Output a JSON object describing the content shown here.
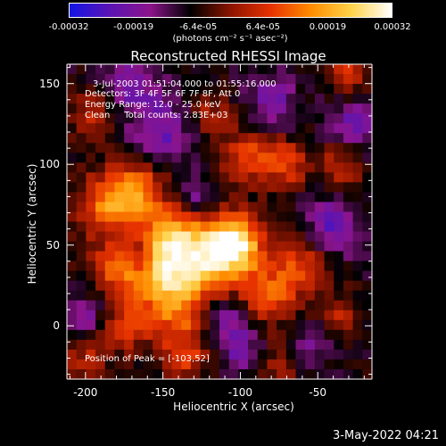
{
  "colorbar": {
    "ticks": [
      "-0.00032",
      "-0.00019",
      "-6.4e-05",
      "6.4e-05",
      "0.00019",
      "0.00032"
    ],
    "units": "(photons cm⁻² s⁻¹ asec⁻²)",
    "colors": [
      "#1414e6",
      "#5a14b4",
      "#8c148c",
      "#000000",
      "#8c1400",
      "#e63200",
      "#ff8c00",
      "#ffd24a",
      "#ffffff"
    ]
  },
  "timestamp": "3-May-2022 04:21",
  "chart_data": {
    "type": "heatmap",
    "title": "Reconstructed RHESSI Image",
    "xlabel": "Heliocentric X (arcsec)",
    "ylabel": "Heliocentric Y (arcsec)",
    "xlim": [
      -212,
      -15
    ],
    "ylim": [
      -33,
      162
    ],
    "xticks": [
      "-200",
      "-150",
      "-100",
      "-50"
    ],
    "yticks": [
      "0",
      "50",
      "100",
      "150"
    ],
    "annotations": [
      "3-Jul-2003 01:51:04.000 to 01:55:16.000",
      "Detectors: 3F 4F 5F 6F 7F 8F, Att 0",
      "Energy Range: 12.0 - 25.0 keV",
      "Clean     Total counts: 2.83E+03"
    ],
    "peak_label": "Position of Peak = [-103,52]",
    "peak": [
      -103,
      52
    ],
    "blobs": [
      {
        "x": -103,
        "y": 52,
        "v": 1.0,
        "s": 12
      },
      {
        "x": -120,
        "y": 40,
        "v": 0.85,
        "s": 16
      },
      {
        "x": -145,
        "y": 55,
        "v": 0.8,
        "s": 14
      },
      {
        "x": -150,
        "y": 30,
        "v": 0.8,
        "s": 14
      },
      {
        "x": -185,
        "y": 75,
        "v": 0.7,
        "s": 14
      },
      {
        "x": -165,
        "y": 85,
        "v": 0.6,
        "s": 12
      },
      {
        "x": -180,
        "y": 35,
        "v": 0.55,
        "s": 12
      },
      {
        "x": -140,
        "y": 5,
        "v": 0.5,
        "s": 14
      },
      {
        "x": -175,
        "y": 0,
        "v": 0.45,
        "s": 12
      },
      {
        "x": -95,
        "y": 105,
        "v": 0.5,
        "s": 12
      },
      {
        "x": -70,
        "y": 100,
        "v": 0.5,
        "s": 10
      },
      {
        "x": -80,
        "y": 20,
        "v": 0.55,
        "s": 14
      },
      {
        "x": -60,
        "y": 40,
        "v": 0.45,
        "s": 12
      },
      {
        "x": -35,
        "y": 100,
        "v": 0.4,
        "s": 10
      },
      {
        "x": -30,
        "y": 155,
        "v": 0.45,
        "s": 9
      },
      {
        "x": -195,
        "y": 130,
        "v": 0.4,
        "s": 10
      },
      {
        "x": -120,
        "y": 130,
        "v": 0.35,
        "s": 10
      },
      {
        "x": -35,
        "y": 5,
        "v": 0.35,
        "s": 10
      },
      {
        "x": -200,
        "y": -20,
        "v": 0.35,
        "s": 10
      },
      {
        "x": -135,
        "y": -20,
        "v": 0.4,
        "s": 10
      },
      {
        "x": -75,
        "y": -25,
        "v": 0.3,
        "s": 10
      },
      {
        "x": -130,
        "y": 80,
        "v": -0.35,
        "s": 9
      },
      {
        "x": -110,
        "y": 5,
        "v": -0.4,
        "s": 10
      },
      {
        "x": -40,
        "y": 60,
        "v": -0.5,
        "s": 12
      },
      {
        "x": -25,
        "y": 125,
        "v": -0.4,
        "s": 12
      },
      {
        "x": -150,
        "y": 120,
        "v": -0.45,
        "s": 14
      },
      {
        "x": -170,
        "y": 150,
        "v": -0.4,
        "s": 12
      },
      {
        "x": -80,
        "y": 140,
        "v": -0.35,
        "s": 12
      },
      {
        "x": -100,
        "y": -15,
        "v": -0.35,
        "s": 10
      },
      {
        "x": -165,
        "y": 45,
        "v": -0.3,
        "s": 8
      },
      {
        "x": -200,
        "y": 5,
        "v": -0.35,
        "s": 10
      },
      {
        "x": -55,
        "y": -10,
        "v": -0.3,
        "s": 10
      }
    ]
  }
}
